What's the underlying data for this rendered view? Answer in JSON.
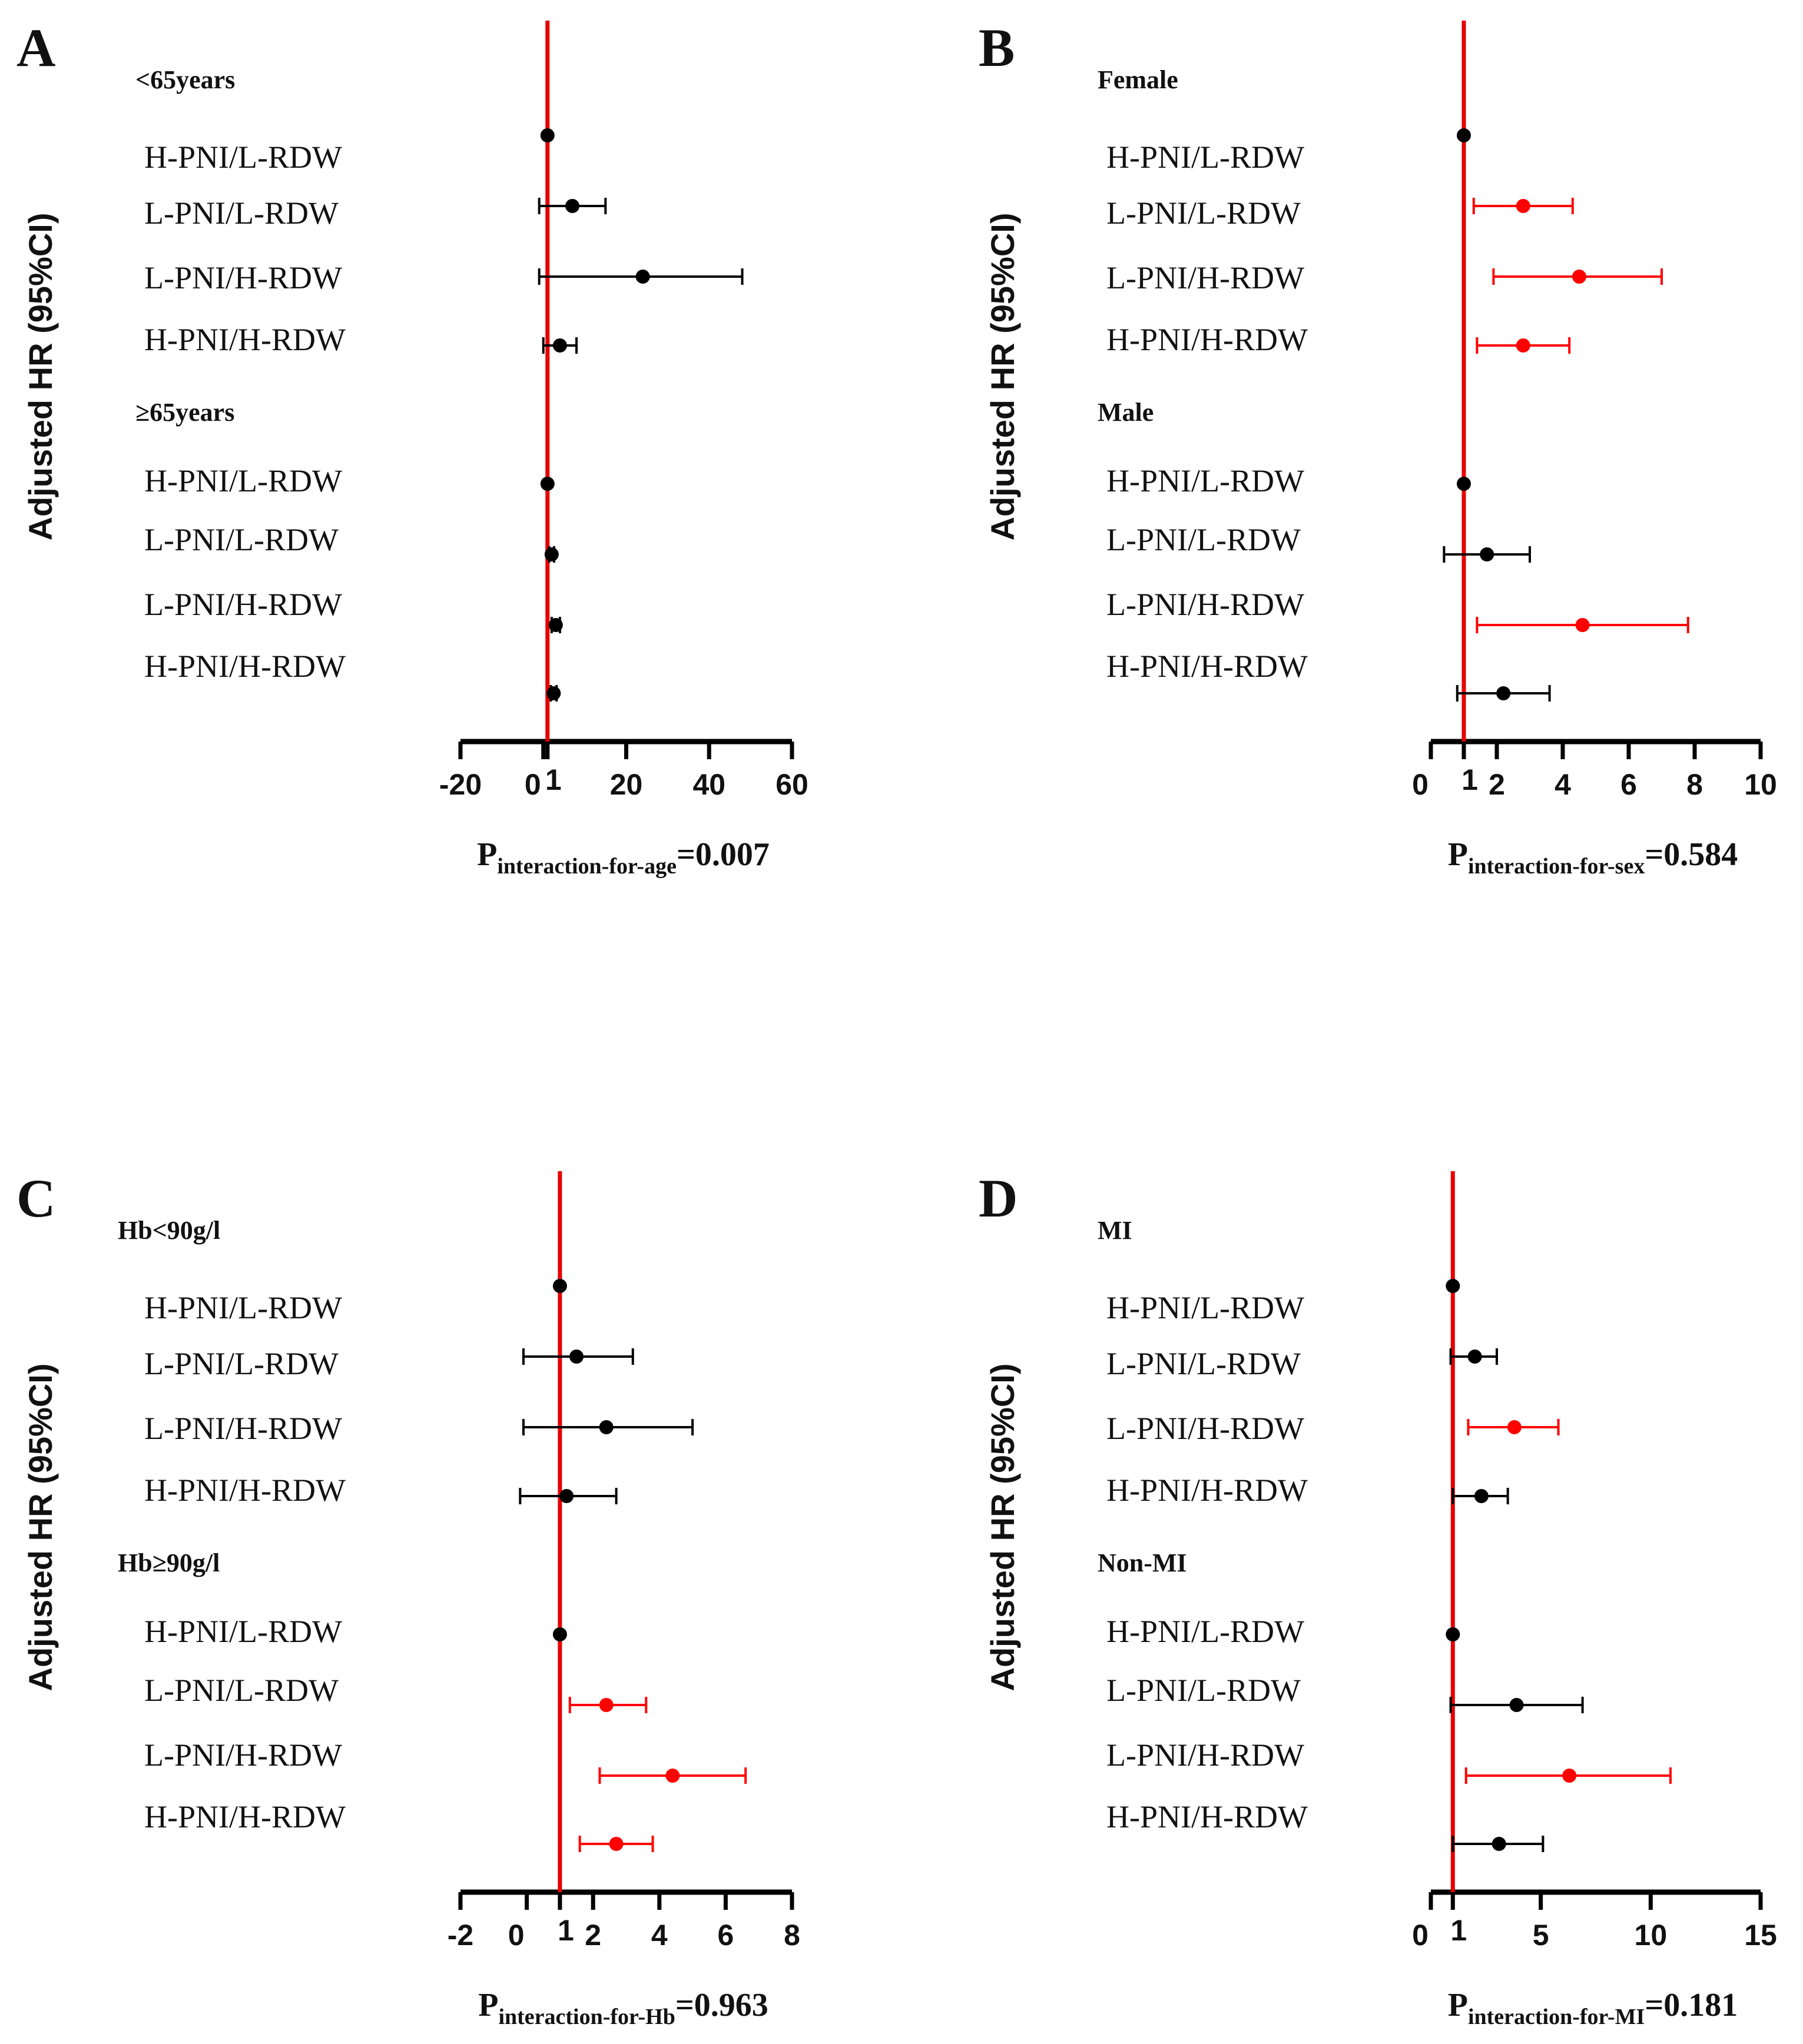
{
  "chart_data": [
    {
      "type": "forest",
      "panel": "A",
      "ylabel": "Adjusted HR (95%CI)",
      "groups": [
        {
          "header": "<65years",
          "rows": [
            {
              "label": "H-PNI/L-RDW",
              "hr": 1,
              "lo": 1,
              "hi": 1,
              "color": "#000000"
            },
            {
              "label": "L-PNI/L-RDW",
              "hr": 7,
              "lo": -1,
              "hi": 15,
              "color": "#000000"
            },
            {
              "label": "L-PNI/H-RDW",
              "hr": 24,
              "lo": -1,
              "hi": 48,
              "color": "#000000"
            },
            {
              "label": "H-PNI/H-RDW",
              "hr": 4,
              "lo": 0,
              "hi": 8,
              "color": "#000000"
            }
          ]
        },
        {
          "header": "≥65years",
          "rows": [
            {
              "label": "H-PNI/L-RDW",
              "hr": 1,
              "lo": 1,
              "hi": 1,
              "color": "#000000"
            },
            {
              "label": "L-PNI/L-RDW",
              "hr": 2,
              "lo": 1.4,
              "hi": 2.6,
              "color": "#000000"
            },
            {
              "label": "L-PNI/H-RDW",
              "hr": 3,
              "lo": 2,
              "hi": 4,
              "color": "#000000"
            },
            {
              "label": "H-PNI/H-RDW",
              "hr": 2.5,
              "lo": 1.8,
              "hi": 3.2,
              "color": "#000000"
            }
          ]
        }
      ],
      "xlim": [
        -20,
        60
      ],
      "ticks": [
        "-20",
        "0",
        "20",
        "40",
        "60"
      ],
      "ref_value": 1,
      "ref_label": "1",
      "p_prefix": "P",
      "p_sub": "interaction-for-age",
      "p_value": "=0.007"
    },
    {
      "type": "forest",
      "panel": "B",
      "ylabel": "Adjusted HR (95%CI)",
      "groups": [
        {
          "header": "Female",
          "rows": [
            {
              "label": "H-PNI/L-RDW",
              "hr": 1,
              "lo": 1,
              "hi": 1,
              "color": "#000000"
            },
            {
              "label": "L-PNI/L-RDW",
              "hr": 2.8,
              "lo": 1.3,
              "hi": 4.3,
              "color": "#ff0000"
            },
            {
              "label": "L-PNI/H-RDW",
              "hr": 4.5,
              "lo": 1.9,
              "hi": 7.0,
              "color": "#ff0000"
            },
            {
              "label": "H-PNI/H-RDW",
              "hr": 2.8,
              "lo": 1.4,
              "hi": 4.2,
              "color": "#ff0000"
            }
          ]
        },
        {
          "header": "Male",
          "rows": [
            {
              "label": "H-PNI/L-RDW",
              "hr": 1,
              "lo": 1,
              "hi": 1,
              "color": "#000000"
            },
            {
              "label": "L-PNI/L-RDW",
              "hr": 1.7,
              "lo": 0.4,
              "hi": 3.0,
              "color": "#000000"
            },
            {
              "label": "L-PNI/H-RDW",
              "hr": 4.6,
              "lo": 1.4,
              "hi": 7.8,
              "color": "#ff0000"
            },
            {
              "label": "H-PNI/H-RDW",
              "hr": 2.2,
              "lo": 0.8,
              "hi": 3.6,
              "color": "#000000"
            }
          ]
        }
      ],
      "xlim": [
        0,
        10
      ],
      "ticks": [
        "0",
        "2",
        "4",
        "6",
        "8",
        "10"
      ],
      "ref_value": 1,
      "ref_label": "1",
      "p_prefix": "P",
      "p_sub": "interaction-for-sex",
      "p_value": "=0.584"
    },
    {
      "type": "forest",
      "panel": "C",
      "ylabel": "Adjusted HR (95%CI)",
      "groups": [
        {
          "header": "Hb<90g/l",
          "rows": [
            {
              "label": "H-PNI/L-RDW",
              "hr": 1,
              "lo": 1,
              "hi": 1,
              "color": "#000000"
            },
            {
              "label": "L-PNI/L-RDW",
              "hr": 1.5,
              "lo": -0.1,
              "hi": 3.2,
              "color": "#000000"
            },
            {
              "label": "L-PNI/H-RDW",
              "hr": 2.4,
              "lo": -0.1,
              "hi": 5.0,
              "color": "#000000"
            },
            {
              "label": "H-PNI/H-RDW",
              "hr": 1.2,
              "lo": -0.2,
              "hi": 2.7,
              "color": "#000000"
            }
          ]
        },
        {
          "header": "Hb≥90g/l",
          "rows": [
            {
              "label": "H-PNI/L-RDW",
              "hr": 1,
              "lo": 1,
              "hi": 1,
              "color": "#000000"
            },
            {
              "label": "L-PNI/L-RDW",
              "hr": 2.4,
              "lo": 1.3,
              "hi": 3.6,
              "color": "#ff0000"
            },
            {
              "label": "L-PNI/H-RDW",
              "hr": 4.4,
              "lo": 2.2,
              "hi": 6.6,
              "color": "#ff0000"
            },
            {
              "label": "H-PNI/H-RDW",
              "hr": 2.7,
              "lo": 1.6,
              "hi": 3.8,
              "color": "#ff0000"
            }
          ]
        }
      ],
      "xlim": [
        -2,
        8
      ],
      "ticks": [
        "-2",
        "0",
        "2",
        "4",
        "6",
        "8"
      ],
      "ref_value": 1,
      "ref_label": "1",
      "p_prefix": "P",
      "p_sub": "interaction-for-Hb",
      "p_value": "=0.963"
    },
    {
      "type": "forest",
      "panel": "D",
      "ylabel": "Adjusted HR (95%CI)",
      "groups": [
        {
          "header": "MI",
          "rows": [
            {
              "label": "H-PNI/L-RDW",
              "hr": 1,
              "lo": 1,
              "hi": 1,
              "color": "#000000"
            },
            {
              "label": "L-PNI/L-RDW",
              "hr": 2.0,
              "lo": 0.9,
              "hi": 3.0,
              "color": "#000000"
            },
            {
              "label": "L-PNI/H-RDW",
              "hr": 3.8,
              "lo": 1.7,
              "hi": 5.8,
              "color": "#ff0000"
            },
            {
              "label": "H-PNI/H-RDW",
              "hr": 2.3,
              "lo": 1.0,
              "hi": 3.5,
              "color": "#000000"
            }
          ]
        },
        {
          "header": "Non-MI",
          "rows": [
            {
              "label": "H-PNI/L-RDW",
              "hr": 1,
              "lo": 1,
              "hi": 1,
              "color": "#000000"
            },
            {
              "label": "L-PNI/L-RDW",
              "hr": 3.9,
              "lo": 0.9,
              "hi": 6.9,
              "color": "#000000"
            },
            {
              "label": "L-PNI/H-RDW",
              "hr": 6.3,
              "lo": 1.6,
              "hi": 10.9,
              "color": "#ff0000"
            },
            {
              "label": "H-PNI/H-RDW",
              "hr": 3.1,
              "lo": 1.0,
              "hi": 5.1,
              "color": "#000000"
            }
          ]
        }
      ],
      "xlim": [
        0,
        15
      ],
      "ticks": [
        "0",
        "5",
        "10",
        "15"
      ],
      "ref_value": 1,
      "ref_label": "1",
      "p_prefix": "P",
      "p_sub": "interaction-for-MI",
      "p_value": "=0.181"
    }
  ]
}
